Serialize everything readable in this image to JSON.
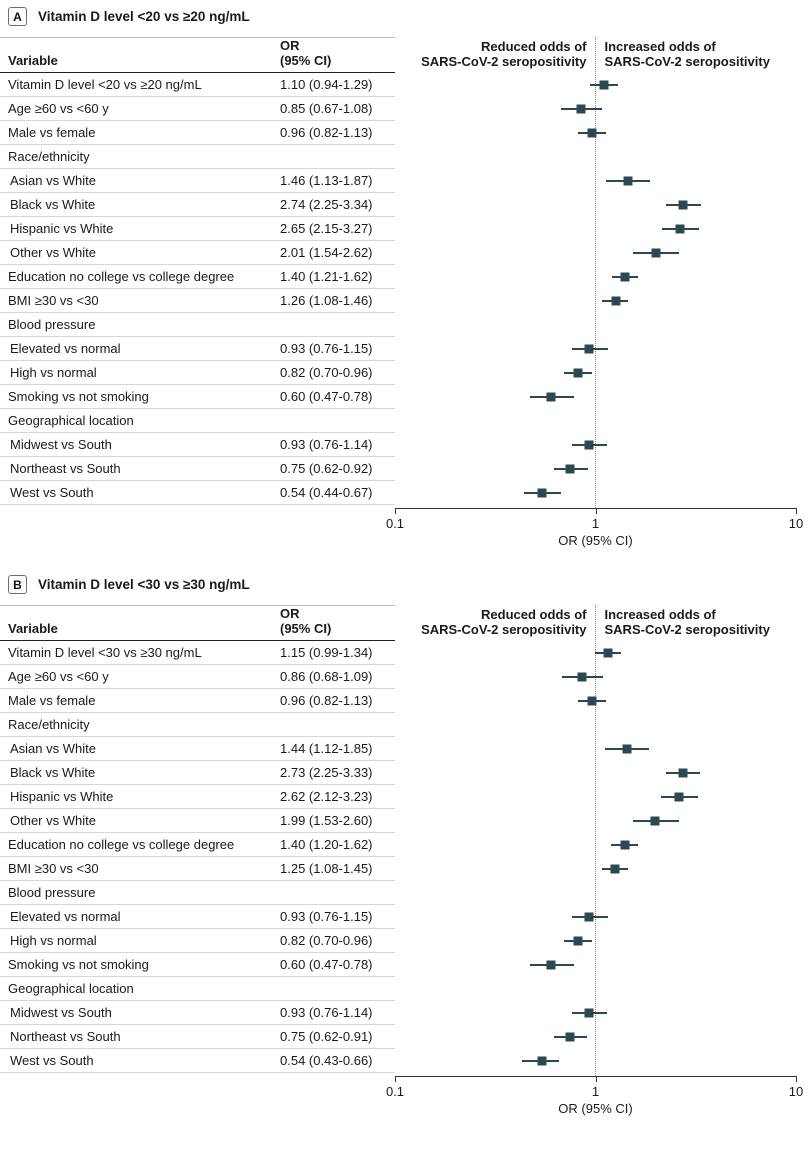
{
  "colors": {
    "marker": "#2c4850",
    "row_rule": "#d8d8d8",
    "header_rule": "#1f1f1f",
    "ref_line": "#808080",
    "axis": "#333333"
  },
  "columns": {
    "variable_header": "Variable",
    "or_header_line1": "OR",
    "or_header_line2": "(95% CI)",
    "left_plot_header_line1": "Reduced odds of",
    "left_plot_header_line2": "SARS-CoV-2 seropositivity",
    "right_plot_header_line1": "Increased odds of",
    "right_plot_header_line2": "SARS-CoV-2 seropositivity"
  },
  "chart_data": [
    {
      "type": "scatter",
      "subtype": "forest-plot",
      "panel_label": "A",
      "title": "Vitamin D level <20 vs ≥20 ng/mL",
      "xlabel": "OR (95% CI)",
      "x_scale": "log",
      "xlim": [
        0.1,
        10
      ],
      "x_ticks": [
        "0.1",
        "1",
        "10"
      ],
      "reference_line": 1,
      "rows": [
        {
          "label": "Vitamin D level <20 vs ≥20 ng/mL",
          "ci_text": "1.10 (0.94-1.29)",
          "or": 1.1,
          "lo": 0.94,
          "hi": 1.29
        },
        {
          "label": "Age ≥60 vs <60 y",
          "ci_text": "0.85 (0.67-1.08)",
          "or": 0.85,
          "lo": 0.67,
          "hi": 1.08
        },
        {
          "label": "Male vs female",
          "ci_text": "0.96 (0.82-1.13)",
          "or": 0.96,
          "lo": 0.82,
          "hi": 1.13
        },
        {
          "label": "Race/ethnicity",
          "group": true
        },
        {
          "label": "Asian vs White",
          "indent": true,
          "ci_text": "1.46 (1.13-1.87)",
          "or": 1.46,
          "lo": 1.13,
          "hi": 1.87
        },
        {
          "label": "Black vs White",
          "indent": true,
          "ci_text": "2.74 (2.25-3.34)",
          "or": 2.74,
          "lo": 2.25,
          "hi": 3.34
        },
        {
          "label": "Hispanic vs White",
          "indent": true,
          "ci_text": "2.65 (2.15-3.27)",
          "or": 2.65,
          "lo": 2.15,
          "hi": 3.27
        },
        {
          "label": "Other vs White",
          "indent": true,
          "ci_text": "2.01 (1.54-2.62)",
          "or": 2.01,
          "lo": 1.54,
          "hi": 2.62
        },
        {
          "label": "Education no college vs college degree",
          "ci_text": "1.40 (1.21-1.62)",
          "or": 1.4,
          "lo": 1.21,
          "hi": 1.62
        },
        {
          "label": "BMI ≥30 vs <30",
          "ci_text": "1.26 (1.08-1.46)",
          "or": 1.26,
          "lo": 1.08,
          "hi": 1.46
        },
        {
          "label": "Blood pressure",
          "group": true
        },
        {
          "label": "Elevated vs normal",
          "indent": true,
          "ci_text": "0.93 (0.76-1.15)",
          "or": 0.93,
          "lo": 0.76,
          "hi": 1.15
        },
        {
          "label": "High vs normal",
          "indent": true,
          "ci_text": "0.82 (0.70-0.96)",
          "or": 0.82,
          "lo": 0.7,
          "hi": 0.96
        },
        {
          "label": "Smoking vs not smoking",
          "ci_text": "0.60 (0.47-0.78)",
          "or": 0.6,
          "lo": 0.47,
          "hi": 0.78
        },
        {
          "label": "Geographical location",
          "group": true
        },
        {
          "label": "Midwest vs South",
          "indent": true,
          "ci_text": "0.93 (0.76-1.14)",
          "or": 0.93,
          "lo": 0.76,
          "hi": 1.14
        },
        {
          "label": "Northeast vs South",
          "indent": true,
          "ci_text": "0.75 (0.62-0.92)",
          "or": 0.75,
          "lo": 0.62,
          "hi": 0.92
        },
        {
          "label": "West vs South",
          "indent": true,
          "ci_text": "0.54 (0.44-0.67)",
          "or": 0.54,
          "lo": 0.44,
          "hi": 0.67
        }
      ]
    },
    {
      "type": "scatter",
      "subtype": "forest-plot",
      "panel_label": "B",
      "title": "Vitamin D level <30 vs ≥30 ng/mL",
      "xlabel": "OR (95% CI)",
      "x_scale": "log",
      "xlim": [
        0.1,
        10
      ],
      "x_ticks": [
        "0.1",
        "1",
        "10"
      ],
      "reference_line": 1,
      "rows": [
        {
          "label": "Vitamin D level <30 vs ≥30 ng/mL",
          "ci_text": "1.15 (0.99-1.34)",
          "or": 1.15,
          "lo": 0.99,
          "hi": 1.34
        },
        {
          "label": "Age ≥60 vs <60 y",
          "ci_text": "0.86 (0.68-1.09)",
          "or": 0.86,
          "lo": 0.68,
          "hi": 1.09
        },
        {
          "label": "Male vs female",
          "ci_text": "0.96 (0.82-1.13)",
          "or": 0.96,
          "lo": 0.82,
          "hi": 1.13
        },
        {
          "label": "Race/ethnicity",
          "group": true
        },
        {
          "label": "Asian vs White",
          "indent": true,
          "ci_text": "1.44 (1.12-1.85)",
          "or": 1.44,
          "lo": 1.12,
          "hi": 1.85
        },
        {
          "label": "Black vs White",
          "indent": true,
          "ci_text": "2.73 (2.25-3.33)",
          "or": 2.73,
          "lo": 2.25,
          "hi": 3.33
        },
        {
          "label": "Hispanic vs White",
          "indent": true,
          "ci_text": "2.62 (2.12-3.23)",
          "or": 2.62,
          "lo": 2.12,
          "hi": 3.23
        },
        {
          "label": "Other vs White",
          "indent": true,
          "ci_text": "1.99 (1.53-2.60)",
          "or": 1.99,
          "lo": 1.53,
          "hi": 2.6
        },
        {
          "label": "Education no college vs college degree",
          "ci_text": "1.40 (1.20-1.62)",
          "or": 1.4,
          "lo": 1.2,
          "hi": 1.62
        },
        {
          "label": "BMI ≥30 vs <30",
          "ci_text": "1.25 (1.08-1.45)",
          "or": 1.25,
          "lo": 1.08,
          "hi": 1.45
        },
        {
          "label": "Blood pressure",
          "group": true
        },
        {
          "label": "Elevated vs normal",
          "indent": true,
          "ci_text": "0.93 (0.76-1.15)",
          "or": 0.93,
          "lo": 0.76,
          "hi": 1.15
        },
        {
          "label": "High vs normal",
          "indent": true,
          "ci_text": "0.82 (0.70-0.96)",
          "or": 0.82,
          "lo": 0.7,
          "hi": 0.96
        },
        {
          "label": "Smoking vs not smoking",
          "ci_text": "0.60 (0.47-0.78)",
          "or": 0.6,
          "lo": 0.47,
          "hi": 0.78
        },
        {
          "label": "Geographical location",
          "group": true
        },
        {
          "label": "Midwest vs South",
          "indent": true,
          "ci_text": "0.93 (0.76-1.14)",
          "or": 0.93,
          "lo": 0.76,
          "hi": 1.14
        },
        {
          "label": "Northeast vs South",
          "indent": true,
          "ci_text": "0.75 (0.62-0.91)",
          "or": 0.75,
          "lo": 0.62,
          "hi": 0.91
        },
        {
          "label": "West vs South",
          "indent": true,
          "ci_text": "0.54 (0.43-0.66)",
          "or": 0.54,
          "lo": 0.43,
          "hi": 0.66
        }
      ]
    }
  ]
}
